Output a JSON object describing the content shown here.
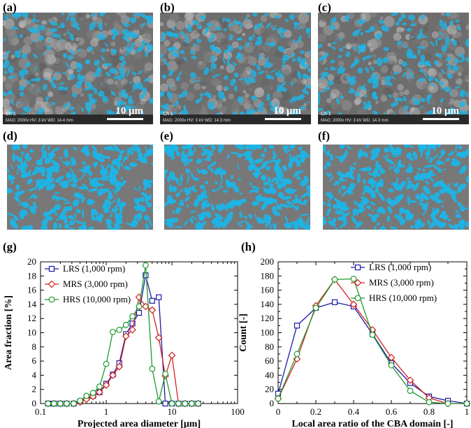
{
  "panels": {
    "a": "(a)",
    "b": "(b)",
    "c": "(c)",
    "d": "(d)",
    "e": "(e)",
    "f": "(f)",
    "g": "(g)",
    "h": "(h)"
  },
  "sem": {
    "scale_label": "10 μm",
    "channel": "Ch 1",
    "info_a": "MAG: 2000x  HV: 3 kV  WD: 14.4 mm",
    "info_b": "MAG: 2000x  HV: 3 kV  WD: 14.3 mm",
    "info_c": "MAG: 2000x  HV: 3 kV  WD: 14.3 mm"
  },
  "colors": {
    "lrs": "#1a1aa6",
    "mrs": "#d42020",
    "hrs": "#1f9a2e",
    "cba": "#1eb4e6",
    "matrix": "#787878"
  },
  "chart_data": [
    {
      "type": "line",
      "panel": "(g)",
      "xscale": "log",
      "xlabel": "Projected area diameter [μm]",
      "ylabel": "Area fraction [%]",
      "xlim": [
        0.1,
        100
      ],
      "ylim": [
        0,
        20
      ],
      "xticks": [
        0.1,
        1,
        10,
        100
      ],
      "xtick_labels": [
        "0.1",
        "1",
        "10",
        "100"
      ],
      "yticks": [
        0,
        2,
        4,
        6,
        8,
        10,
        12,
        14,
        16,
        18,
        20
      ],
      "ytick_labels": [
        "0",
        "2",
        "4",
        "6",
        "8",
        "10",
        "12",
        "14",
        "16",
        "18",
        "20"
      ],
      "legend_position": "top-left",
      "series": [
        {
          "name": "LRS (1,000 rpm)",
          "marker": "square",
          "x": [
            0.13,
            0.16,
            0.2,
            0.25,
            0.32,
            0.4,
            0.5,
            0.63,
            0.79,
            1.0,
            1.26,
            1.58,
            2.0,
            2.51,
            3.16,
            3.98,
            5.01,
            6.31,
            7.94,
            10,
            12.6,
            15.8,
            20,
            25.1
          ],
          "y": [
            0,
            0,
            0,
            0,
            0,
            0.3,
            0.8,
            1.1,
            1.6,
            2.8,
            4.1,
            5.7,
            9.8,
            11.3,
            12.8,
            18.1,
            14.5,
            15.0,
            0,
            0,
            0,
            0,
            0,
            0
          ]
        },
        {
          "name": "MRS (3,000 rpm)",
          "marker": "diamond",
          "x": [
            0.13,
            0.16,
            0.2,
            0.25,
            0.32,
            0.4,
            0.5,
            0.63,
            0.79,
            1.0,
            1.26,
            1.58,
            2.0,
            2.51,
            3.16,
            3.98,
            5.01,
            6.31,
            7.94,
            10,
            12.6,
            15.8,
            20,
            25.1
          ],
          "y": [
            0,
            0,
            0,
            0,
            0,
            0.2,
            0.6,
            1.0,
            1.6,
            2.6,
            4.0,
            5.2,
            9.5,
            10.4,
            15.0,
            13.7,
            13.2,
            9.3,
            3.9,
            6.8,
            0,
            0,
            0,
            0
          ]
        },
        {
          "name": "HRS (10,000 rpm)",
          "marker": "circle",
          "x": [
            0.13,
            0.16,
            0.2,
            0.25,
            0.32,
            0.4,
            0.5,
            0.63,
            0.79,
            1.0,
            1.26,
            1.58,
            2.0,
            2.51,
            3.16,
            3.98,
            5.01,
            6.31,
            7.94,
            10,
            12.6,
            15.8,
            20,
            25.1
          ],
          "y": [
            0,
            0,
            0,
            0,
            0,
            0.4,
            1.1,
            1.5,
            2.4,
            5.6,
            10.1,
            10.4,
            11.1,
            12.3,
            13.7,
            19.5,
            4.9,
            0.3,
            4.2,
            0,
            0,
            0,
            0,
            0
          ]
        }
      ]
    },
    {
      "type": "line",
      "panel": "(h)",
      "xlabel": "Local area ratio of the CBA domain [-]",
      "ylabel": "Count [-]",
      "xlim": [
        0,
        1
      ],
      "ylim": [
        0,
        200
      ],
      "xticks": [
        0,
        0.2,
        0.4,
        0.6,
        0.8,
        1
      ],
      "xtick_labels": [
        "0",
        "0.2",
        "0.4",
        "0.6",
        "0.8",
        "1"
      ],
      "yticks": [
        0,
        20,
        40,
        60,
        80,
        100,
        120,
        140,
        160,
        180,
        200
      ],
      "ytick_labels": [
        "0",
        "20",
        "40",
        "60",
        "80",
        "100",
        "120",
        "140",
        "160",
        "180",
        "200"
      ],
      "legend_position": "top-right",
      "series": [
        {
          "name": "LRS (1,000 rpm)",
          "marker": "square",
          "x": [
            0,
            0.1,
            0.2,
            0.3,
            0.4,
            0.5,
            0.6,
            0.7,
            0.8,
            0.9,
            1.0
          ],
          "y": [
            14,
            110,
            135,
            143,
            137,
            98,
            57,
            29,
            10,
            4,
            0
          ]
        },
        {
          "name": "MRS (3,000 rpm)",
          "marker": "diamond",
          "x": [
            0,
            0.1,
            0.2,
            0.3,
            0.4,
            0.5,
            0.6,
            0.7,
            0.8,
            0.9,
            1.0
          ],
          "y": [
            7,
            63,
            138,
            175,
            140,
            104,
            65,
            33,
            8,
            0,
            0
          ]
        },
        {
          "name": "HRS (10,000 rpm)",
          "marker": "circle",
          "x": [
            0,
            0.1,
            0.2,
            0.3,
            0.4,
            0.5,
            0.6,
            0.7,
            0.8,
            0.9,
            1.0
          ],
          "y": [
            7,
            70,
            135,
            175,
            176,
            97,
            54,
            18,
            2,
            0,
            0
          ]
        }
      ]
    }
  ]
}
